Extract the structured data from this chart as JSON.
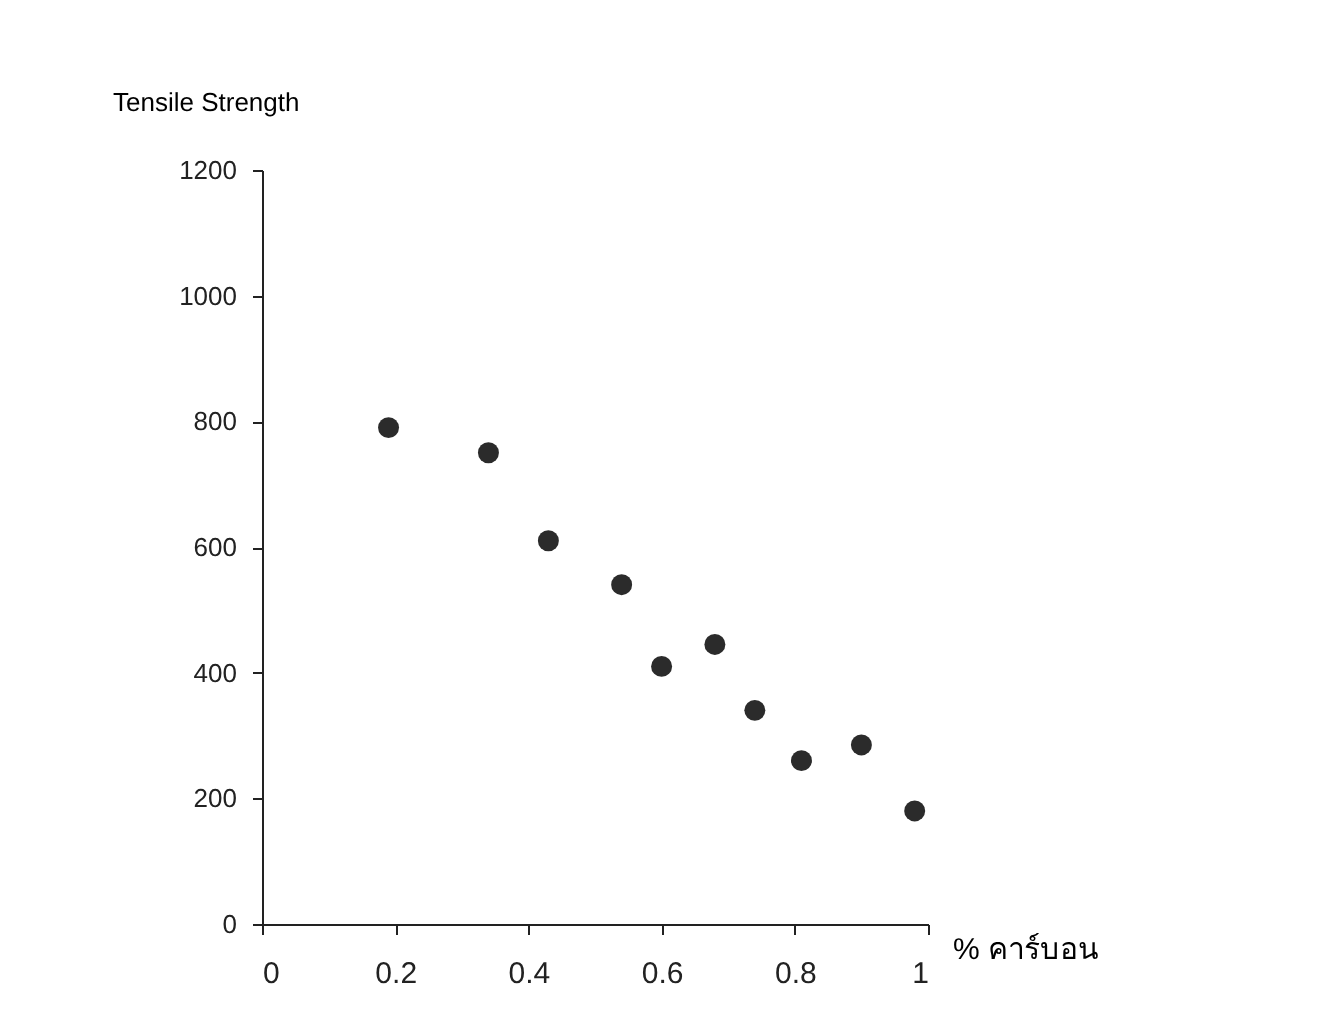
{
  "chart_data": {
    "type": "scatter",
    "ylabel": "Tensile Strength",
    "xlabel": "% คาร์บอน",
    "x": [
      0.19,
      0.34,
      0.43,
      0.54,
      0.6,
      0.68,
      0.74,
      0.81,
      0.9,
      0.98
    ],
    "series": [
      {
        "color": "#2b2b2b",
        "values": [
          790,
          750,
          610,
          540,
          410,
          445,
          340,
          260,
          285,
          180
        ]
      }
    ],
    "xlim": [
      0,
      1
    ],
    "xticks": [
      0,
      0.2,
      0.4,
      0.6,
      0.8,
      1
    ],
    "ylim": [
      0,
      1200
    ],
    "yticks": [
      0,
      200,
      400,
      600,
      800,
      1000,
      1200
    ],
    "marker": "circle",
    "grid": false,
    "legend": false
  }
}
